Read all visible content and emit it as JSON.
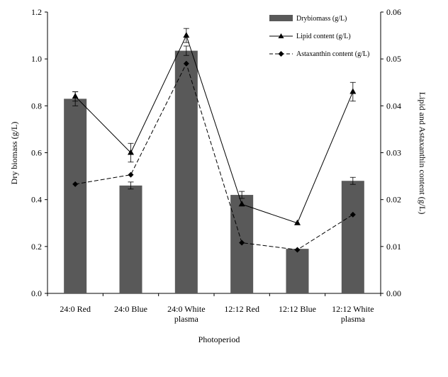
{
  "chart_data": {
    "type": "bar",
    "x_title": "Photoperiod",
    "y_left_title": "Dry biomass (g/L)",
    "y_right_title": "Lipid and Astaxanthin content (g/L)",
    "categories": [
      [
        "24:0 Red"
      ],
      [
        "24:0 Blue"
      ],
      [
        "24:0 White",
        "plasma"
      ],
      [
        "12:12 Red"
      ],
      [
        "12:12 Blue"
      ],
      [
        "12:12 White",
        "plasma"
      ]
    ],
    "y_left_range": [
      0,
      1.2
    ],
    "y_left_ticks": [
      "0.0",
      "0.2",
      "0.4",
      "0.6",
      "0.8",
      "1.0",
      "1.2"
    ],
    "y_right_range": [
      0,
      0.06
    ],
    "y_right_ticks": [
      "0.00",
      "0.01",
      "0.02",
      "0.03",
      "0.04",
      "0.05",
      "0.06"
    ],
    "legend_position": "top-right",
    "grid": false,
    "series": [
      {
        "name": "Drybiomass (g/L)",
        "kind": "bar",
        "axis": "left",
        "color": "#595959",
        "values": [
          0.83,
          0.46,
          1.035,
          0.42,
          0.19,
          0.48
        ],
        "errors": [
          0.03,
          0.015,
          0.02,
          0.015,
          0.0,
          0.015
        ]
      },
      {
        "name": "Lipid content (g/L)",
        "kind": "line",
        "axis": "right",
        "marker": "triangle",
        "dash": "solid",
        "color": "#000000",
        "values": [
          0.042,
          0.03,
          0.055,
          0.019,
          0.015,
          0.043
        ],
        "errors": [
          0.001,
          0.002,
          0.0015,
          0.0,
          0.0,
          0.002
        ]
      },
      {
        "name": "Astaxanthin content (g/L)",
        "kind": "line",
        "axis": "right",
        "marker": "diamond",
        "dash": "dashed",
        "color": "#000000",
        "values": [
          0.0233,
          0.0253,
          0.049,
          0.0108,
          0.0093,
          0.0168
        ],
        "errors": [
          0,
          0,
          0,
          0,
          0,
          0
        ]
      }
    ]
  }
}
